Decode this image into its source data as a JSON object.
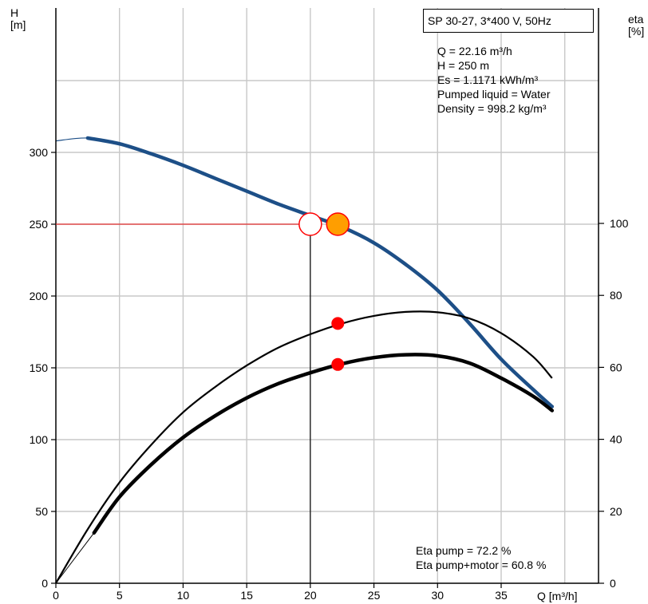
{
  "header": {
    "y_left_label": [
      "H",
      "[m]"
    ],
    "y_right_label": [
      "eta",
      "[%]"
    ],
    "x_label": "Q [m³/h]",
    "pump_title": "SP 30-27, 3*400 V, 50Hz"
  },
  "info": {
    "lines": [
      "Q = 22.16 m³/h",
      "H = 250 m",
      "Es = 1.1171 kWh/m³",
      "Pumped liquid = Water",
      "Density = 998.2 kg/m³"
    ]
  },
  "eta_info": {
    "lines": [
      "Eta pump = 72.2 %",
      "Eta pump+motor = 60.8 %"
    ]
  },
  "colors": {
    "head_curve": "#1d4f87",
    "duty_point": "#ff9e00",
    "marker_red": "#ff0000",
    "duty_line": "#e53030",
    "grid": "#c8c8c8"
  },
  "chart_data": {
    "type": "line",
    "xlabel": "Q [m³/h]",
    "ylabel": "H [m]",
    "y2label": "eta [%]",
    "xlim": [
      0,
      40
    ],
    "ylim": [
      0,
      350
    ],
    "y2lim": [
      0,
      140
    ],
    "grid": true,
    "x_ticks": [
      0,
      5,
      10,
      15,
      20,
      25,
      30,
      35
    ],
    "y_ticks": [
      0,
      50,
      100,
      150,
      200,
      250,
      300
    ],
    "y2_ticks": [
      0,
      20,
      40,
      60,
      80,
      100
    ],
    "series": [
      {
        "axis": "left",
        "style": "head",
        "x": [
          0,
          2.5,
          5,
          7.5,
          10,
          12.5,
          15,
          17.5,
          20,
          22.5,
          25,
          27.5,
          30,
          32.5,
          35,
          37.5,
          39
        ],
        "values": [
          308,
          310,
          306,
          299,
          291,
          282,
          273,
          264,
          256,
          248,
          237,
          222,
          204,
          181,
          156,
          135,
          123
        ]
      },
      {
        "axis": "right",
        "style": "eta-pump",
        "x": [
          0,
          2.5,
          5,
          7.5,
          10,
          12.5,
          15,
          17.5,
          20,
          22.5,
          25,
          27.5,
          30,
          32.5,
          35,
          37.5,
          39
        ],
        "values": [
          0,
          15,
          28,
          38.5,
          47.5,
          54.5,
          60.5,
          65.5,
          69.2,
          72.2,
          74.3,
          75.4,
          75.3,
          73.6,
          69.5,
          63,
          57
        ]
      },
      {
        "axis": "right",
        "style": "eta-pump-motor",
        "x": [
          3,
          5,
          7.5,
          10,
          12.5,
          15,
          17.5,
          20,
          22.5,
          25,
          27.5,
          30,
          32.5,
          35,
          37.5,
          39
        ],
        "values": [
          14,
          24,
          33,
          40.5,
          46.5,
          51.5,
          55.5,
          58.5,
          61,
          62.7,
          63.5,
          63.2,
          61.2,
          57,
          52,
          48
        ]
      }
    ],
    "duty_point": {
      "x": 22.16,
      "y": 250
    },
    "required_point": {
      "x": 20,
      "y": 250
    },
    "eta_points": [
      {
        "x": 22.16,
        "eta": 72.2
      },
      {
        "x": 22.16,
        "eta": 60.8
      }
    ]
  }
}
